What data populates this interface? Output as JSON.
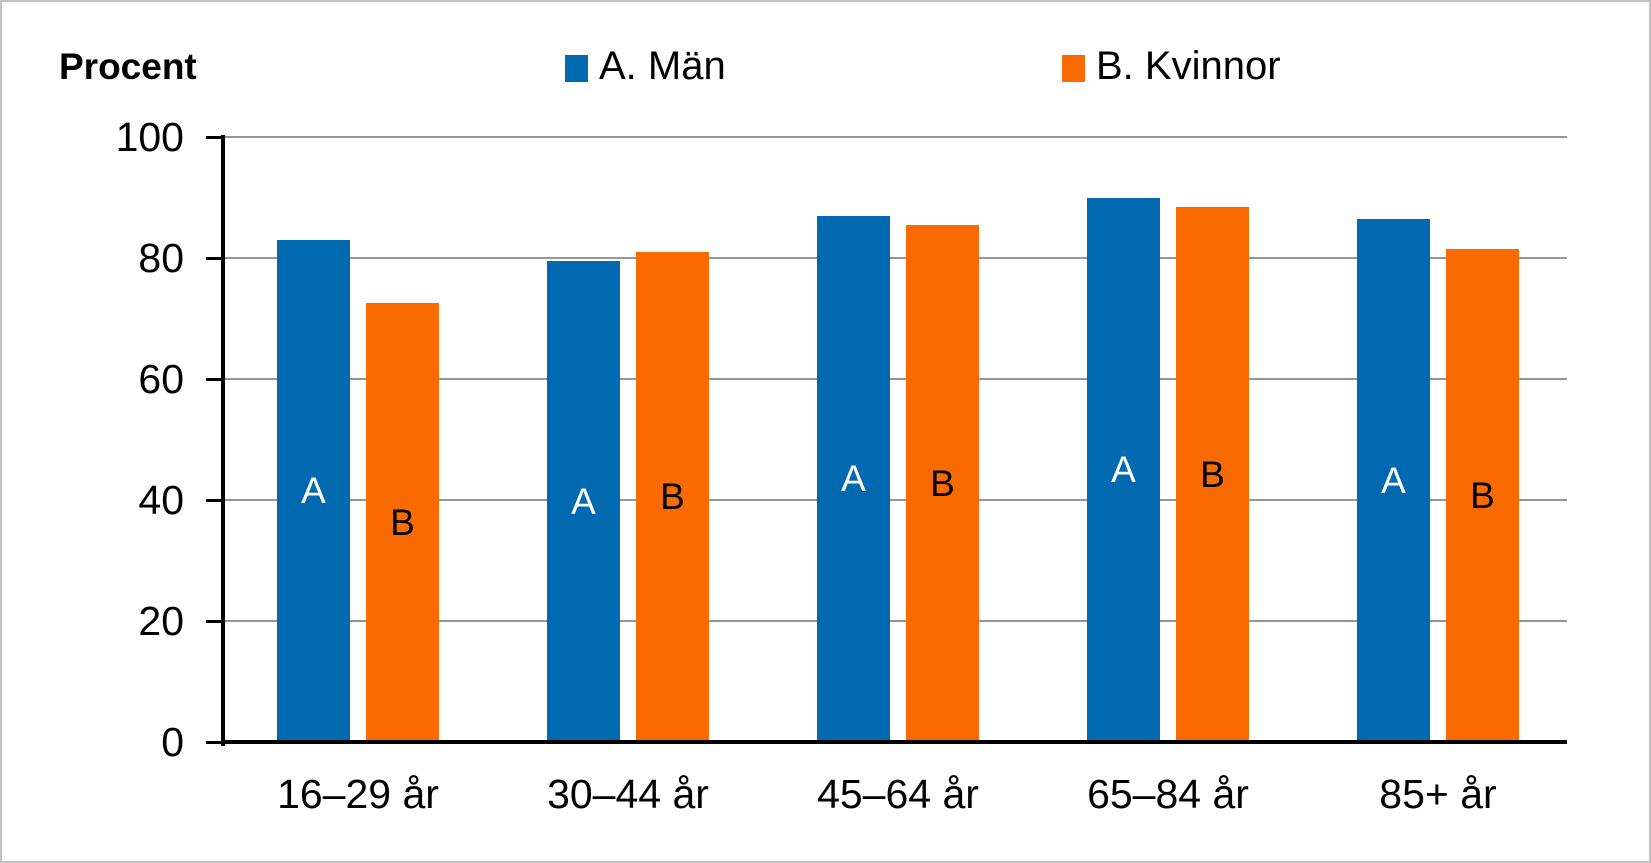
{
  "chart_data": {
    "type": "bar",
    "ylabel": "Procent",
    "categories": [
      "16–29 år",
      "30–44 år",
      "45–64 år",
      "65–84 år",
      "85+ år"
    ],
    "series": [
      {
        "name": "A. Män",
        "bar_letter": "A",
        "color": "#0069b0",
        "letter_color": "#ffffff",
        "values": [
          83,
          79.5,
          87,
          90,
          86.5
        ]
      },
      {
        "name": "B. Kvinnor",
        "bar_letter": "B",
        "color": "#f96a00",
        "letter_color": "#000000",
        "values": [
          72.5,
          81,
          85.5,
          88.5,
          81.5
        ]
      }
    ],
    "ylim": [
      0,
      100
    ],
    "yticks": [
      0,
      20,
      40,
      60,
      80,
      100
    ],
    "grid": true,
    "grid_color": "#969696",
    "axis_color": "#000000",
    "legend_position": "top"
  }
}
